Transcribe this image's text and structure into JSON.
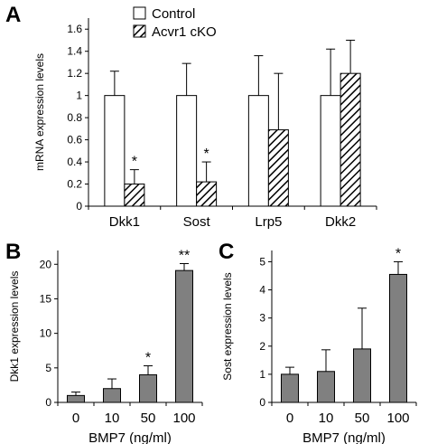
{
  "chart_data": [
    {
      "panel": "A",
      "type": "bar",
      "title": "",
      "xlabel": "",
      "ylabel": "mRNA expression levels",
      "ylim": [
        0,
        1.7
      ],
      "yticks": [
        "0",
        "0.2",
        "0.4",
        "0.6",
        "0.8",
        "1",
        "1.2",
        "1.4",
        "1.6"
      ],
      "categories": [
        "Dkk1",
        "Sost",
        "Lrp5",
        "Dkk2"
      ],
      "legend_position": "top",
      "series": [
        {
          "name": "Control",
          "values": [
            1.0,
            1.0,
            1.0,
            1.0
          ],
          "errors": [
            0.22,
            0.29,
            0.36,
            0.42
          ],
          "fill": "#ffffff"
        },
        {
          "name": "Acvr1 cKO",
          "values": [
            0.2,
            0.22,
            0.69,
            1.2
          ],
          "errors": [
            0.13,
            0.18,
            0.51,
            0.3
          ],
          "fill": "hatch"
        }
      ],
      "annotations": [
        "*",
        "*",
        "",
        ""
      ]
    },
    {
      "panel": "B",
      "type": "bar",
      "title": "",
      "xlabel": "BMP7 (ng/ml)",
      "ylabel": "Dkk1 expression levels",
      "ylim": [
        0,
        22
      ],
      "yticks": [
        "0",
        "5",
        "10",
        "15",
        "20"
      ],
      "categories": [
        "0",
        "10",
        "50",
        "100"
      ],
      "values": [
        1.0,
        2.0,
        4.0,
        19.1
      ],
      "errors": [
        0.5,
        1.4,
        1.3,
        1.0
      ],
      "bar_color": "#808080",
      "annotations": [
        "",
        "",
        "*",
        "**"
      ]
    },
    {
      "panel": "C",
      "type": "bar",
      "title": "",
      "xlabel": "BMP7 (ng/ml)",
      "ylabel": "Sost expression levels",
      "ylim": [
        0,
        5.4
      ],
      "yticks": [
        "0",
        "1",
        "2",
        "3",
        "4",
        "5"
      ],
      "categories": [
        "0",
        "10",
        "50",
        "100"
      ],
      "values": [
        1.0,
        1.1,
        1.9,
        4.55
      ],
      "errors": [
        0.25,
        0.77,
        1.45,
        0.45
      ],
      "bar_color": "#808080",
      "annotations": [
        "",
        "",
        "",
        "*"
      ]
    }
  ]
}
